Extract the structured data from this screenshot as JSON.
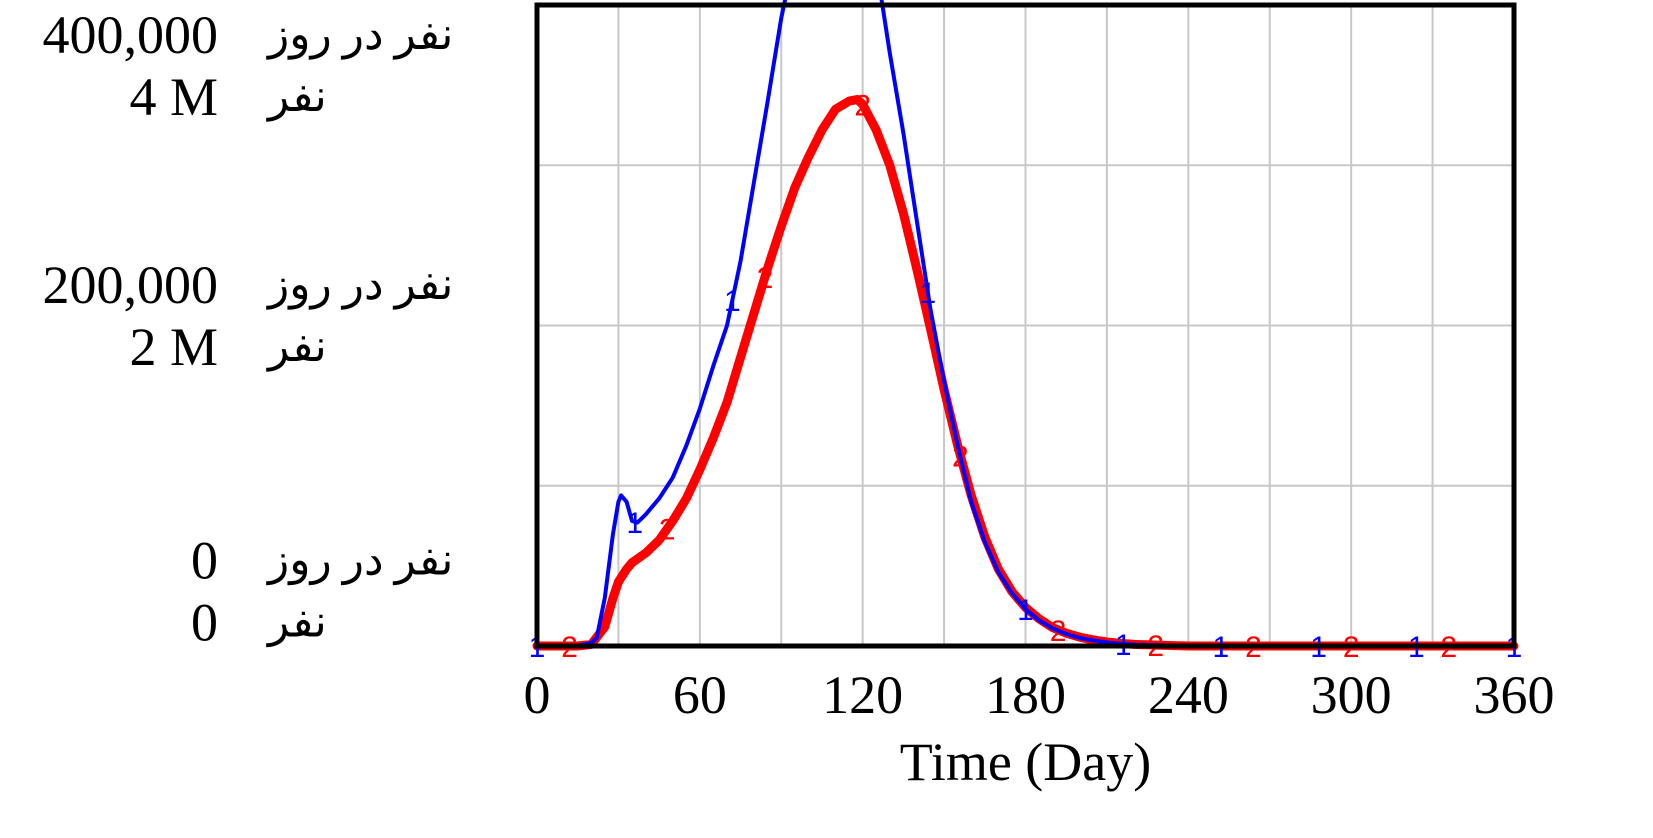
{
  "chart_data": {
    "type": "line",
    "xlabel": "Time (Day)",
    "xlim": [
      0,
      360
    ],
    "x_ticks": [
      0,
      60,
      120,
      180,
      240,
      300,
      360
    ],
    "x_grid": [
      0,
      30,
      60,
      90,
      120,
      150,
      180,
      210,
      240,
      270,
      300,
      330,
      360
    ],
    "grid": true,
    "y_axes": [
      {
        "ticks": [
          {
            "value": "400,000",
            "unit": "نفر در روز"
          },
          {
            "value": "200,000",
            "unit": "نفر در روز"
          },
          {
            "value": "0",
            "unit": "نفر در روز"
          }
        ],
        "ylim": [
          0,
          400000
        ]
      },
      {
        "ticks": [
          {
            "value": "4 M",
            "unit": "نفر"
          },
          {
            "value": "2 M",
            "unit": "نفر"
          },
          {
            "value": "0",
            "unit": "نفر"
          }
        ],
        "ylim": [
          0,
          4000000
        ]
      }
    ],
    "series": [
      {
        "marker": "1",
        "color": "#0000ff",
        "axis": 1,
        "x": [
          0,
          10,
          15,
          20,
          22,
          25,
          28,
          30,
          31,
          33,
          35,
          37,
          40,
          45,
          50,
          55,
          60,
          65,
          70,
          75,
          80,
          85,
          90,
          95,
          100,
          105,
          108,
          110,
          115,
          120,
          125,
          130,
          135,
          140,
          145,
          150,
          155,
          160,
          165,
          170,
          175,
          180,
          185,
          190,
          195,
          200,
          205,
          210,
          215,
          220,
          230,
          240,
          250,
          260,
          270,
          280,
          290,
          300,
          310,
          320,
          330,
          340,
          350,
          360
        ],
        "y": [
          0,
          0,
          2000,
          20000,
          50000,
          300000,
          700000,
          900000,
          940000,
          900000,
          780000,
          770000,
          820000,
          920000,
          1050000,
          1250000,
          1480000,
          1750000,
          2000000,
          2400000,
          2900000,
          3400000,
          3920000,
          4320000,
          4650000,
          4860000,
          4950000,
          4960000,
          4850000,
          4600000,
          4250000,
          3700000,
          3200000,
          2650000,
          2100000,
          1650000,
          1250000,
          900000,
          650000,
          460000,
          330000,
          230000,
          160000,
          110000,
          75000,
          50000,
          35000,
          22000,
          14000,
          9000,
          4000,
          2000,
          1000,
          500,
          0,
          0,
          0,
          0,
          0,
          0,
          0,
          0,
          0,
          0
        ]
      },
      {
        "marker": "2",
        "color": "#ff0000",
        "axis": 0,
        "x": [
          0,
          10,
          15,
          20,
          25,
          28,
          30,
          33,
          35,
          40,
          45,
          50,
          55,
          60,
          65,
          70,
          75,
          80,
          85,
          90,
          95,
          100,
          105,
          110,
          115,
          118,
          120,
          125,
          130,
          135,
          140,
          145,
          150,
          155,
          160,
          165,
          170,
          175,
          180,
          185,
          190,
          195,
          200,
          205,
          210,
          215,
          220,
          230,
          240,
          250,
          260,
          270,
          280,
          290,
          300,
          310,
          320,
          330,
          340,
          350,
          360
        ],
        "y": [
          0,
          0,
          0,
          1000,
          12000,
          30000,
          40000,
          48000,
          52000,
          58000,
          66000,
          78000,
          92000,
          110000,
          130000,
          152000,
          180000,
          208000,
          236000,
          262000,
          286000,
          305000,
          322000,
          335000,
          340000,
          341000,
          338000,
          322000,
          300000,
          270000,
          235000,
          198000,
          160000,
          125000,
          94000,
          68000,
          48000,
          34000,
          24000,
          17000,
          11500,
          8000,
          5500,
          3800,
          2500,
          1600,
          1000,
          500,
          0,
          0,
          0,
          0,
          0,
          0,
          0,
          0,
          0,
          0,
          0,
          0,
          0
        ]
      }
    ]
  }
}
